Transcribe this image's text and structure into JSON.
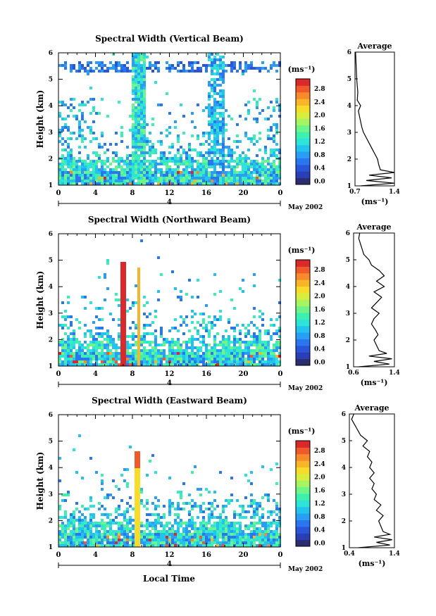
{
  "colors": {
    "scale": [
      "#2b2d6e",
      "#2a3fb5",
      "#2a55d8",
      "#2a75f0",
      "#2a9df5",
      "#22c4ee",
      "#2ee3d8",
      "#3ef0b0",
      "#6ef58a",
      "#a5f462",
      "#d7ee3e",
      "#f7dd2a",
      "#f9b52a",
      "#f78a2a",
      "#f05a2a",
      "#d9292a"
    ],
    "line": "#000000"
  },
  "shared": {
    "x_ticks": [
      "0",
      "4",
      "8",
      "12",
      "16",
      "20",
      "0"
    ],
    "y_ticks": [
      "1",
      "2",
      "3",
      "4",
      "5",
      "6"
    ],
    "ylabel": "Height (km)",
    "day_label": "4",
    "month_label": "May 2002",
    "cb_unit": "(ms⁻¹)",
    "cb_ticks": [
      "0.0",
      "0.4",
      "0.8",
      "1.2",
      "1.6",
      "2.0",
      "2.4",
      "2.8"
    ],
    "avg_title": "Average",
    "avg_unit": "(ms⁻¹)",
    "xlabel": "Local Time"
  },
  "chart_data": [
    {
      "type": "heatmap",
      "title": "Spectral Width (Vertical Beam)",
      "xlim": [
        0,
        24
      ],
      "ylim": [
        1,
        6
      ],
      "x_unit": "hours local time",
      "colorbar_range": [
        0.0,
        2.8
      ],
      "avg_ticks": [
        "0.7",
        "1.4"
      ],
      "avg_xlim": [
        0.7,
        1.4
      ],
      "average_profile": {
        "height": [
          1.0,
          1.1,
          1.2,
          1.3,
          1.4,
          1.5,
          1.6,
          1.8,
          2.0,
          2.2,
          2.4,
          2.6,
          2.8,
          3.0,
          3.2,
          3.4,
          3.6,
          3.8,
          4.0,
          4.2,
          4.5,
          5.0,
          5.5,
          6.0
        ],
        "width": [
          0.8,
          1.4,
          0.9,
          1.35,
          0.95,
          1.4,
          1.15,
          1.12,
          1.1,
          1.05,
          1.0,
          0.95,
          0.9,
          0.85,
          0.82,
          0.8,
          0.78,
          0.76,
          0.8,
          0.74,
          0.75,
          0.73,
          0.72,
          0.71
        ]
      }
    },
    {
      "type": "heatmap",
      "title": "Spectral Width (Northward Beam)",
      "xlim": [
        0,
        24
      ],
      "ylim": [
        1,
        6
      ],
      "x_unit": "hours local time",
      "colorbar_range": [
        0.0,
        2.8
      ],
      "avg_ticks": [
        "0.6",
        "1.4"
      ],
      "avg_xlim": [
        0.6,
        1.4
      ],
      "average_profile": {
        "height": [
          1.0,
          1.1,
          1.2,
          1.3,
          1.4,
          1.5,
          1.6,
          1.8,
          2.0,
          2.2,
          2.4,
          2.6,
          2.8,
          3.0,
          3.2,
          3.4,
          3.6,
          3.8,
          4.0,
          4.2,
          4.4,
          4.6,
          4.8,
          5.0,
          5.2,
          5.5,
          5.8,
          6.0
        ],
        "width": [
          0.7,
          1.3,
          1.0,
          1.35,
          0.9,
          1.25,
          1.1,
          1.05,
          1.0,
          1.08,
          1.02,
          0.95,
          1.0,
          1.1,
          0.95,
          1.05,
          1.15,
          1.0,
          1.2,
          1.05,
          1.2,
          1.1,
          0.95,
          0.9,
          0.8,
          0.75,
          0.7,
          0.72
        ]
      }
    },
    {
      "type": "heatmap",
      "title": "Spectral Width (Eastward Beam)",
      "xlim": [
        0,
        24
      ],
      "ylim": [
        1,
        6
      ],
      "x_unit": "hours local time",
      "colorbar_range": [
        0.0,
        2.8
      ],
      "avg_ticks": [
        "0.4",
        "1.4"
      ],
      "avg_xlim": [
        0.4,
        1.4
      ],
      "average_profile": {
        "height": [
          1.0,
          1.1,
          1.2,
          1.3,
          1.4,
          1.5,
          1.6,
          1.8,
          2.0,
          2.2,
          2.4,
          2.6,
          2.8,
          3.0,
          3.2,
          3.4,
          3.6,
          3.8,
          4.0,
          4.2,
          4.4,
          4.6,
          4.8,
          5.0,
          5.2,
          5.5,
          5.8,
          6.0
        ],
        "width": [
          0.6,
          1.3,
          1.0,
          1.35,
          0.95,
          1.3,
          1.15,
          1.1,
          1.05,
          1.15,
          1.0,
          1.1,
          0.95,
          1.0,
          0.9,
          0.95,
          0.85,
          0.95,
          0.85,
          0.9,
          0.8,
          0.85,
          0.7,
          0.8,
          0.65,
          0.55,
          0.45,
          0.5
        ]
      }
    }
  ]
}
